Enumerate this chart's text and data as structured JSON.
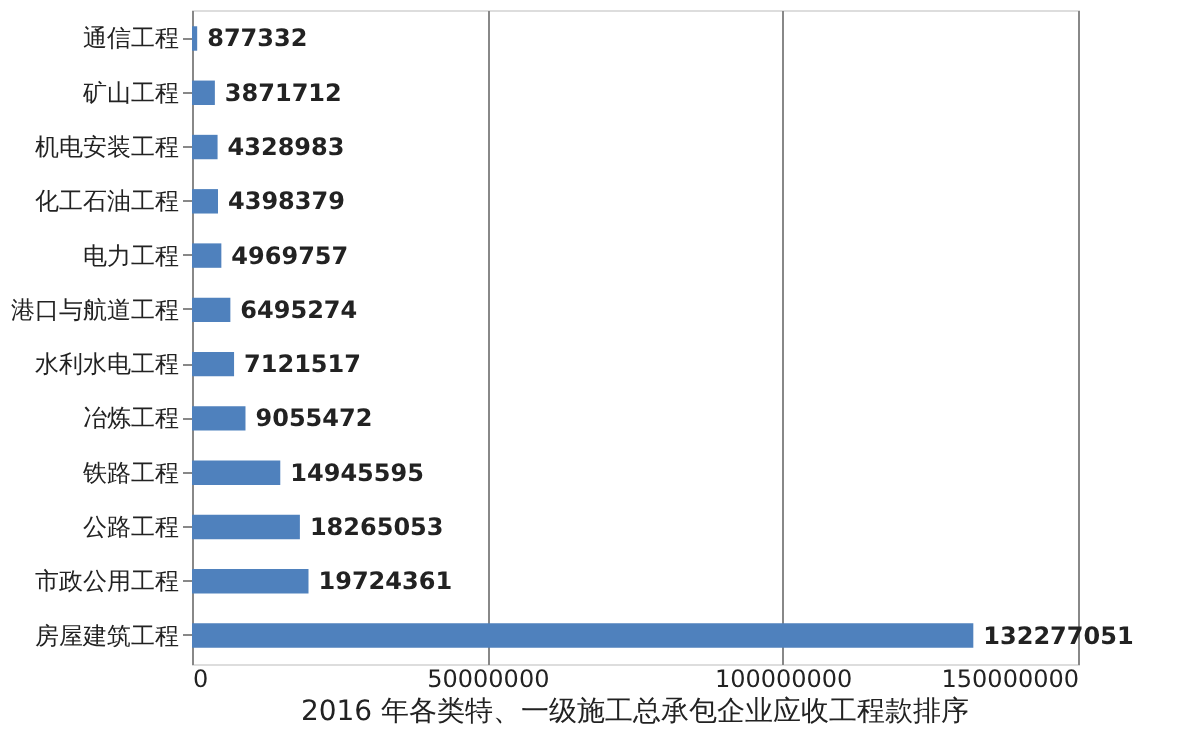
{
  "chart_data": {
    "type": "bar",
    "orientation": "horizontal",
    "title": "2016 年各类特、一级施工总承包企业应收工程款排序",
    "categories": [
      "通信工程",
      "矿山工程",
      "机电安装工程",
      "化工石油工程",
      "电力工程",
      "港口与航道工程",
      "水利水电工程",
      "冶炼工程",
      "铁路工程",
      "公路工程",
      "市政公用工程",
      "房屋建筑工程"
    ],
    "values": [
      877332,
      3871712,
      4328983,
      4398379,
      4969757,
      6495274,
      7121517,
      9055472,
      14945595,
      18265053,
      19724361,
      132277051
    ],
    "color": "#4f81bd",
    "xlim": [
      0,
      150000000
    ],
    "xticks": [
      0,
      50000000,
      100000000,
      150000000
    ],
    "grid": "x",
    "data_labels": true
  }
}
